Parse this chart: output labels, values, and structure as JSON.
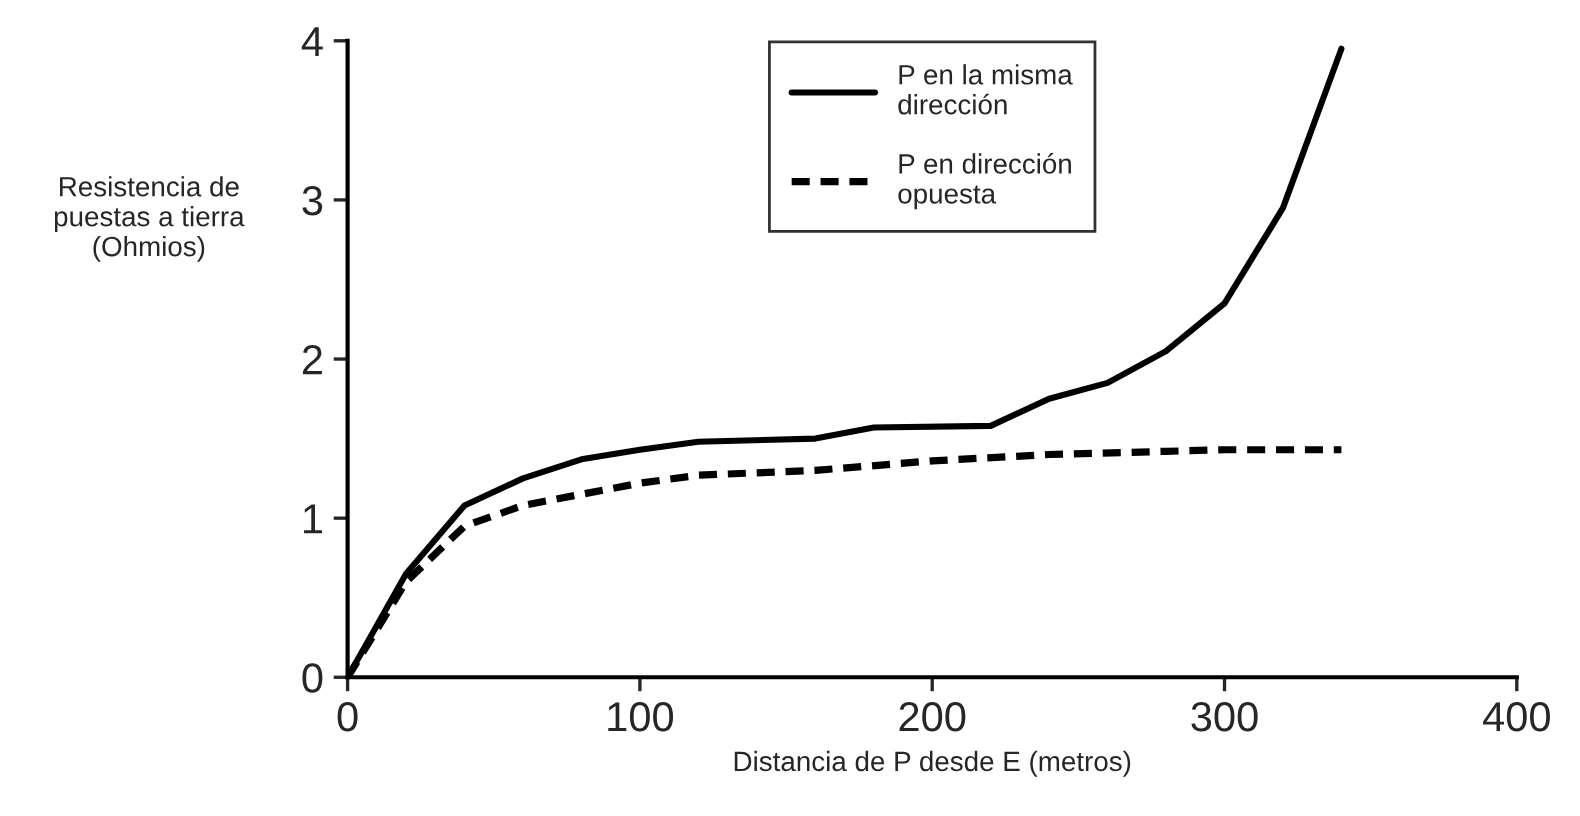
{
  "chart_data": {
    "type": "line",
    "xlabel": "Distancia de P desde E (metros)",
    "ylabel": "Resistencia de\npuestas a tierra\n(Ohmios)",
    "xlim": [
      0,
      400
    ],
    "xticks": [
      0,
      100,
      200,
      300,
      400
    ],
    "ylim": [
      0,
      4
    ],
    "yticks": [
      0,
      1,
      2,
      3,
      4
    ],
    "grid": false,
    "legend": "top",
    "marker": "none",
    "series": [
      {
        "name": "P en la misma\ndirección",
        "color": "#000000",
        "line_style": "solid",
        "x": [
          0,
          20,
          40,
          60,
          80,
          100,
          120,
          160,
          180,
          220,
          240,
          260,
          280,
          300,
          320,
          340
        ],
        "values": [
          0,
          0.65,
          1.08,
          1.25,
          1.37,
          1.43,
          1.48,
          1.5,
          1.57,
          1.58,
          1.75,
          1.85,
          2.05,
          2.35,
          2.95,
          3.95
        ]
      },
      {
        "name": "P en dirección\nopuesta",
        "color": "#000000",
        "line_style": "dashed",
        "x": [
          0,
          20,
          40,
          60,
          80,
          100,
          120,
          160,
          200,
          240,
          280,
          300,
          340
        ],
        "values": [
          0,
          0.6,
          0.95,
          1.08,
          1.15,
          1.22,
          1.27,
          1.3,
          1.36,
          1.4,
          1.42,
          1.43,
          1.43
        ]
      }
    ]
  }
}
